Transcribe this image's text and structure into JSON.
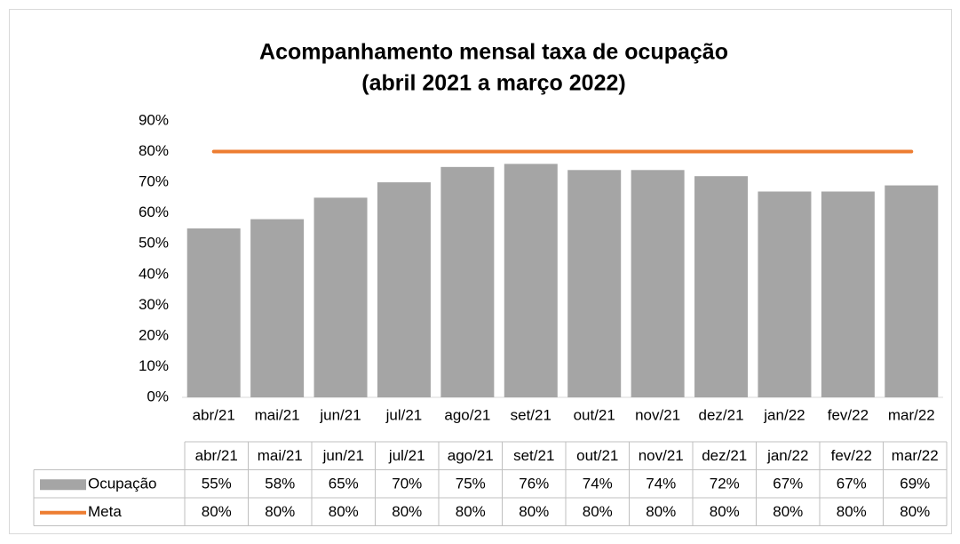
{
  "chart_data": {
    "type": "bar",
    "title": "Acompanhamento mensal taxa de ocupação",
    "subtitle": "(abril 2021 a março 2022)",
    "categories": [
      "abr/21",
      "mai/21",
      "jun/21",
      "jul/21",
      "ago/21",
      "set/21",
      "out/21",
      "nov/21",
      "dez/21",
      "jan/22",
      "fev/22",
      "mar/22"
    ],
    "series": [
      {
        "name": "Ocupação",
        "type": "bar",
        "color": "#a5a5a5",
        "values": [
          55,
          58,
          65,
          70,
          75,
          76,
          74,
          74,
          72,
          67,
          67,
          69
        ],
        "value_labels": [
          "55%",
          "58%",
          "65%",
          "70%",
          "75%",
          "76%",
          "74%",
          "74%",
          "72%",
          "67%",
          "67%",
          "69%"
        ]
      },
      {
        "name": "Meta",
        "type": "line",
        "color": "#ed7d31",
        "values": [
          80,
          80,
          80,
          80,
          80,
          80,
          80,
          80,
          80,
          80,
          80,
          80
        ],
        "value_labels": [
          "80%",
          "80%",
          "80%",
          "80%",
          "80%",
          "80%",
          "80%",
          "80%",
          "80%",
          "80%",
          "80%",
          "80%"
        ]
      }
    ],
    "ylim": [
      0,
      90
    ],
    "yticks": [
      {
        "value": 0,
        "label": "0%"
      },
      {
        "value": 10,
        "label": "10%"
      },
      {
        "value": 20,
        "label": "20%"
      },
      {
        "value": 30,
        "label": "30%"
      },
      {
        "value": 40,
        "label": "40%"
      },
      {
        "value": 50,
        "label": "50%"
      },
      {
        "value": 60,
        "label": "60%"
      },
      {
        "value": 70,
        "label": "70%"
      },
      {
        "value": 80,
        "label": "80%"
      },
      {
        "value": 90,
        "label": "90%"
      }
    ],
    "grid": false,
    "data_table": true
  }
}
